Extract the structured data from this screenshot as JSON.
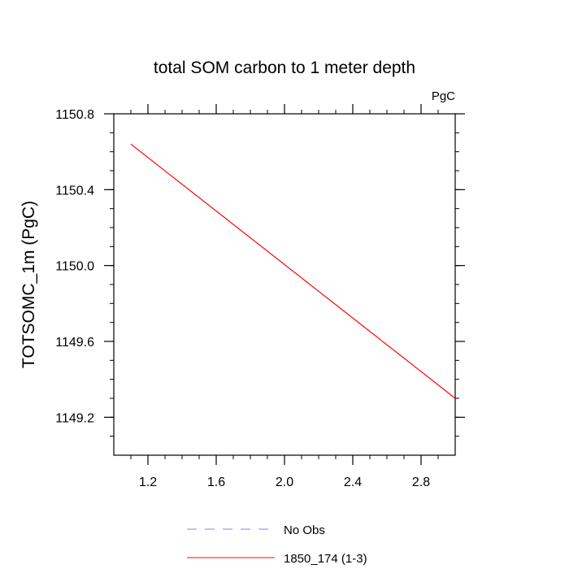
{
  "chart_data": {
    "type": "line",
    "title": "total SOM carbon to 1 meter depth",
    "units_label": "PgC",
    "xlabel": "",
    "ylabel": "TOTSOMC_1m  (PgC)",
    "xlim": [
      1.0,
      3.0
    ],
    "ylim": [
      1149.0,
      1150.8
    ],
    "xticks": [
      1.2,
      1.6,
      2.0,
      2.4,
      2.8
    ],
    "xtick_labels": [
      "1.2",
      "1.6",
      "2.0",
      "2.4",
      "2.8"
    ],
    "yticks": [
      1149.2,
      1149.6,
      1150.0,
      1150.4,
      1150.8
    ],
    "ytick_labels": [
      "1149.2",
      "1149.6",
      "1150.0",
      "1150.4",
      "1150.8"
    ],
    "grid": false,
    "legend_position": "bottom",
    "series": [
      {
        "name": "No Obs",
        "color": "#8080ff",
        "dash": "dashed",
        "x": [],
        "y": []
      },
      {
        "name": "1850_174 (1-3)",
        "color": "#ff0000",
        "dash": "solid",
        "x": [
          1.1,
          3.0
        ],
        "y": [
          1150.64,
          1149.3
        ]
      }
    ]
  }
}
